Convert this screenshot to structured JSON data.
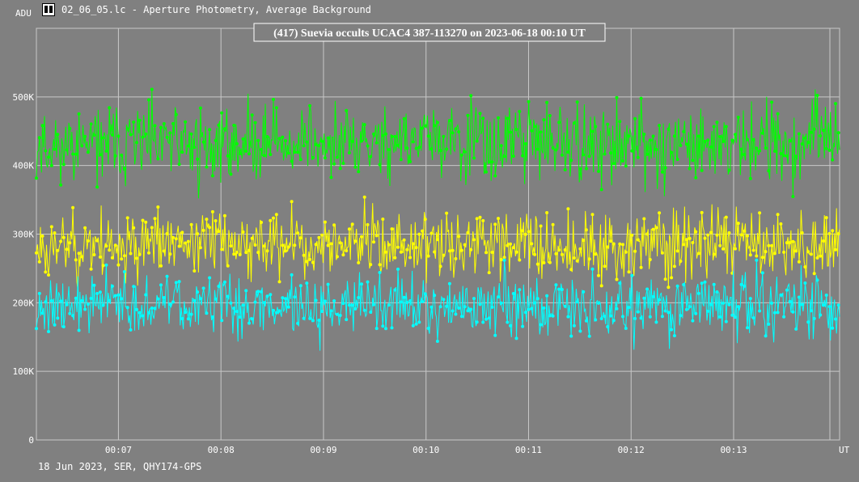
{
  "window": {
    "title": "02_06_05.lc - Aperture Photometry, Average Background",
    "footer": "18 Jun 2023, SER, QHY174-GPS"
  },
  "colors": {
    "background": "#808080",
    "grid": "#c8c8c8",
    "target": "#00ff00",
    "comparison": "#ffff00",
    "background_series": "#00ffff"
  },
  "chart_data": {
    "type": "line",
    "title": "(417) Suevia occults UCAC4 387-113270 on 2023-06-18  00:10 UT",
    "ylabel": "ADU",
    "xlabel": "UT",
    "ylim": [
      0,
      600000
    ],
    "xlim": [
      "00:06:12",
      "00:14:02"
    ],
    "y_ticks": [
      {
        "label": "0",
        "value": 0
      },
      {
        "label": "100K",
        "value": 100000
      },
      {
        "label": "200K",
        "value": 200000
      },
      {
        "label": "300K",
        "value": 300000
      },
      {
        "label": "400K",
        "value": 400000
      },
      {
        "label": "500K",
        "value": 500000
      }
    ],
    "x_ticks": [
      {
        "label": "00:07",
        "value": "00:07:00"
      },
      {
        "label": "00:08",
        "value": "00:08:00"
      },
      {
        "label": "00:09",
        "value": "00:09:00"
      },
      {
        "label": "00:10",
        "value": "00:10:00"
      },
      {
        "label": "00:11",
        "value": "00:11:00"
      },
      {
        "label": "00:12",
        "value": "00:12:00"
      },
      {
        "label": "00:13",
        "value": "00:13:00"
      }
    ],
    "grid": true,
    "n_points": 794,
    "series": [
      {
        "key": "green",
        "color": "#00ff00",
        "mean": 432000,
        "spread": 28000,
        "min": 352000,
        "max": 511000,
        "seed": 11
      },
      {
        "key": "yellow",
        "color": "#ffff00",
        "mean": 285000,
        "spread": 24000,
        "min": 192000,
        "max": 372000,
        "seed": 23
      },
      {
        "key": "cyan",
        "color": "#00ffff",
        "mean": 197000,
        "spread": 22000,
        "min": 120000,
        "max": 262000,
        "seed": 37
      }
    ]
  }
}
